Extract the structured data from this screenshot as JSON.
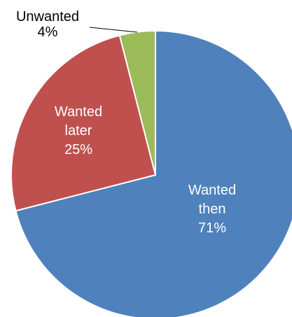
{
  "chart_data": {
    "type": "pie",
    "title": "",
    "slices": [
      {
        "name": "Wanted then",
        "label_lines": [
          "Wanted",
          "then"
        ],
        "value": 71,
        "value_label": "71%",
        "color": "#4F81BD",
        "label_position": "inside"
      },
      {
        "name": "Wanted later",
        "label_lines": [
          "Wanted",
          "later"
        ],
        "value": 25,
        "value_label": "25%",
        "color": "#C0504D",
        "label_position": "inside"
      },
      {
        "name": "Unwanted",
        "label_lines": [
          "Unwanted"
        ],
        "value": 4,
        "value_label": "4%",
        "color": "#9BBB59",
        "label_position": "outside"
      }
    ],
    "start_angle": "12 o'clock",
    "direction": "clockwise",
    "legend": "none",
    "slice_border_color": "#ffffff"
  }
}
